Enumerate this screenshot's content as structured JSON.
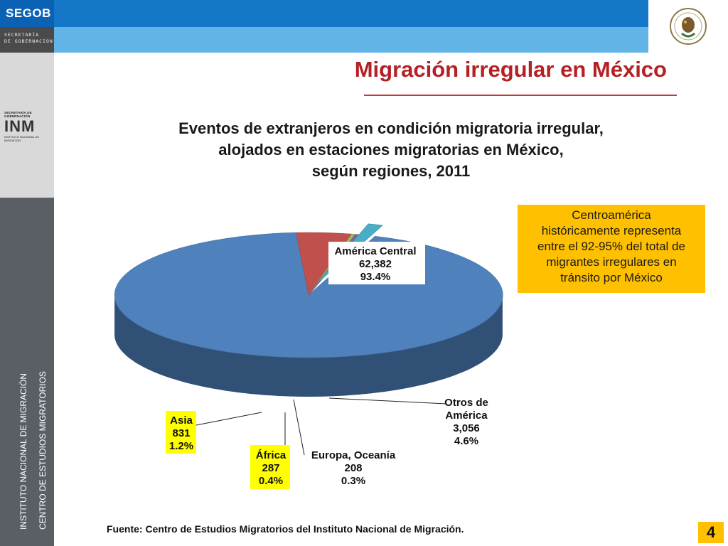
{
  "header": {
    "brand": "SEGOB",
    "subbrand_line1": "SECRETARÍA",
    "subbrand_line2": "DE GOBERNACIÓN"
  },
  "logo": {
    "top_text": "SECRETARÍA DE GOBERNACIÓN",
    "mark": "INM",
    "bottom_text": "INSTITUTO NACIONAL DE MIGRACIÓN"
  },
  "seal": {
    "icon": "mexico-coat-of-arms-icon"
  },
  "sidebar": {
    "line1": "INSTITUTO NACIONAL DE MIGRACIÓN",
    "line2": "CENTRO DE ESTUDIOS MIGRATORIOS"
  },
  "page": {
    "title": "Migración irregular en México",
    "note_line1": "Centroamérica",
    "note_line2": "históricamente representa",
    "note_line3": "entre el 92-95% del total de",
    "note_line4": "migrantes irregulares en",
    "note_line5": "tránsito por México",
    "source": "Fuente: Centro de Estudios Migratorios del Instituto Nacional de Migración.",
    "page_number": "4"
  },
  "chart_data": {
    "type": "pie",
    "style": "3d-exploded",
    "title_line1": "Eventos de extranjeros en condición migratoria irregular,",
    "title_line2": "alojados en estaciones migratorias en México,",
    "title_line3": "según regiones, 2011",
    "slices": [
      {
        "name": "América Central",
        "name_line1": "América Central",
        "name_line2": "",
        "value": 62382,
        "value_text": "62,382",
        "percent_text": "93.4%",
        "color": "#4f81bd",
        "label_highlight": false
      },
      {
        "name": "Otros de América",
        "name_line1": "Otros de",
        "name_line2": "América",
        "value": 3056,
        "value_text": "3,056",
        "percent_text": "4.6%",
        "color": "#c0504d",
        "label_highlight": false
      },
      {
        "name": "Europa, Oceanía",
        "name_line1": "Europa, Oceanía",
        "name_line2": "",
        "value": 208,
        "value_text": "208",
        "percent_text": "0.3%",
        "color": "#9bbb59",
        "label_highlight": false
      },
      {
        "name": "África",
        "name_line1": "África",
        "name_line2": "",
        "value": 287,
        "value_text": "287",
        "percent_text": "0.4%",
        "color": "#8064a2",
        "label_highlight": true
      },
      {
        "name": "Asia",
        "name_line1": "Asia",
        "name_line2": "",
        "value": 831,
        "value_text": "831",
        "percent_text": "1.2%",
        "color": "#4bacc6",
        "label_highlight": true
      }
    ],
    "highlight_color": "#ffff00"
  }
}
